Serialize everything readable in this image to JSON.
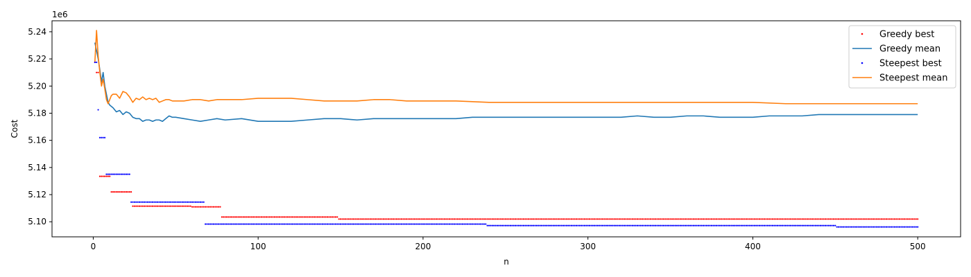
{
  "chart_data": {
    "type": "line",
    "title": "",
    "xlabel": "n",
    "ylabel": "Cost",
    "offset_text": "1e6",
    "scale_multiplier": 1000000,
    "xlim": [
      -25,
      526
    ],
    "ylim": [
      5.0889,
      5.2481
    ],
    "xticks": [
      0,
      100,
      200,
      300,
      400,
      500
    ],
    "xtick_labels": [
      "0",
      "100",
      "200",
      "300",
      "400",
      "500"
    ],
    "yticks": [
      5.1,
      5.12,
      5.14,
      5.16,
      5.18,
      5.2,
      5.22,
      5.24
    ],
    "ytick_labels": [
      "5.10",
      "5.12",
      "5.14",
      "5.16",
      "5.18",
      "5.20",
      "5.22",
      "5.24"
    ],
    "grid": false,
    "legend_position": "top-right",
    "series": [
      {
        "name": "Greedy best",
        "style": "points",
        "color": "#ff0000",
        "steps": [
          [
            1,
            5.2175
          ],
          [
            2,
            5.21
          ],
          [
            4,
            5.1335
          ],
          [
            10,
            5.1335
          ],
          [
            11,
            5.122
          ],
          [
            23,
            5.122
          ],
          [
            24,
            5.1115
          ],
          [
            59,
            5.1115
          ],
          [
            60,
            5.111
          ],
          [
            77,
            5.111
          ],
          [
            78,
            5.1035
          ],
          [
            148,
            5.1035
          ],
          [
            149,
            5.102
          ],
          [
            500,
            5.102
          ]
        ]
      },
      {
        "name": "Greedy mean",
        "style": "line",
        "color": "#1f77b4",
        "points": [
          [
            1,
            5.232
          ],
          [
            2,
            5.226
          ],
          [
            3,
            5.22
          ],
          [
            4,
            5.212
          ],
          [
            5,
            5.203
          ],
          [
            6,
            5.21
          ],
          [
            7,
            5.2
          ],
          [
            8,
            5.194
          ],
          [
            9,
            5.188
          ],
          [
            10,
            5.186
          ],
          [
            12,
            5.184
          ],
          [
            14,
            5.181
          ],
          [
            16,
            5.182
          ],
          [
            18,
            5.179
          ],
          [
            20,
            5.181
          ],
          [
            22,
            5.18
          ],
          [
            24,
            5.177
          ],
          [
            26,
            5.176
          ],
          [
            28,
            5.176
          ],
          [
            30,
            5.174
          ],
          [
            32,
            5.175
          ],
          [
            34,
            5.175
          ],
          [
            36,
            5.174
          ],
          [
            38,
            5.175
          ],
          [
            40,
            5.175
          ],
          [
            42,
            5.174
          ],
          [
            44,
            5.176
          ],
          [
            46,
            5.178
          ],
          [
            48,
            5.177
          ],
          [
            50,
            5.177
          ],
          [
            55,
            5.176
          ],
          [
            60,
            5.175
          ],
          [
            65,
            5.174
          ],
          [
            70,
            5.175
          ],
          [
            75,
            5.176
          ],
          [
            80,
            5.175
          ],
          [
            90,
            5.176
          ],
          [
            100,
            5.174
          ],
          [
            110,
            5.174
          ],
          [
            120,
            5.174
          ],
          [
            130,
            5.175
          ],
          [
            140,
            5.176
          ],
          [
            150,
            5.176
          ],
          [
            160,
            5.175
          ],
          [
            170,
            5.176
          ],
          [
            180,
            5.176
          ],
          [
            190,
            5.176
          ],
          [
            200,
            5.176
          ],
          [
            210,
            5.176
          ],
          [
            220,
            5.176
          ],
          [
            230,
            5.177
          ],
          [
            240,
            5.177
          ],
          [
            250,
            5.177
          ],
          [
            260,
            5.177
          ],
          [
            270,
            5.177
          ],
          [
            280,
            5.177
          ],
          [
            290,
            5.177
          ],
          [
            300,
            5.177
          ],
          [
            310,
            5.177
          ],
          [
            320,
            5.177
          ],
          [
            330,
            5.178
          ],
          [
            340,
            5.177
          ],
          [
            350,
            5.177
          ],
          [
            360,
            5.178
          ],
          [
            370,
            5.178
          ],
          [
            380,
            5.177
          ],
          [
            390,
            5.177
          ],
          [
            400,
            5.177
          ],
          [
            410,
            5.178
          ],
          [
            420,
            5.178
          ],
          [
            430,
            5.178
          ],
          [
            440,
            5.179
          ],
          [
            450,
            5.179
          ],
          [
            460,
            5.179
          ],
          [
            470,
            5.179
          ],
          [
            480,
            5.179
          ],
          [
            490,
            5.179
          ],
          [
            500,
            5.179
          ]
        ]
      },
      {
        "name": "Steepest best",
        "style": "points",
        "color": "#0000ff",
        "steps": [
          [
            1,
            5.2175
          ],
          [
            3,
            5.1825
          ],
          [
            4,
            5.162
          ],
          [
            7,
            5.162
          ],
          [
            8,
            5.135
          ],
          [
            22,
            5.135
          ],
          [
            23,
            5.1145
          ],
          [
            67,
            5.1145
          ],
          [
            68,
            5.0983
          ],
          [
            238,
            5.0983
          ],
          [
            239,
            5.0972
          ],
          [
            450,
            5.0972
          ],
          [
            451,
            5.0962
          ],
          [
            500,
            5.0962
          ]
        ]
      },
      {
        "name": "Steepest mean",
        "style": "line",
        "color": "#ff7f0e",
        "points": [
          [
            1,
            5.218
          ],
          [
            2,
            5.241
          ],
          [
            3,
            5.222
          ],
          [
            4,
            5.21
          ],
          [
            5,
            5.2
          ],
          [
            6,
            5.205
          ],
          [
            7,
            5.198
          ],
          [
            8,
            5.19
          ],
          [
            9,
            5.187
          ],
          [
            10,
            5.19
          ],
          [
            11,
            5.193
          ],
          [
            12,
            5.194
          ],
          [
            14,
            5.194
          ],
          [
            16,
            5.191
          ],
          [
            18,
            5.196
          ],
          [
            20,
            5.195
          ],
          [
            22,
            5.192
          ],
          [
            24,
            5.188
          ],
          [
            26,
            5.191
          ],
          [
            28,
            5.19
          ],
          [
            30,
            5.192
          ],
          [
            32,
            5.19
          ],
          [
            34,
            5.191
          ],
          [
            36,
            5.19
          ],
          [
            38,
            5.191
          ],
          [
            40,
            5.188
          ],
          [
            42,
            5.189
          ],
          [
            44,
            5.19
          ],
          [
            46,
            5.19
          ],
          [
            48,
            5.189
          ],
          [
            50,
            5.189
          ],
          [
            55,
            5.189
          ],
          [
            60,
            5.19
          ],
          [
            65,
            5.19
          ],
          [
            70,
            5.189
          ],
          [
            75,
            5.19
          ],
          [
            80,
            5.19
          ],
          [
            90,
            5.19
          ],
          [
            100,
            5.191
          ],
          [
            110,
            5.191
          ],
          [
            120,
            5.191
          ],
          [
            130,
            5.19
          ],
          [
            140,
            5.189
          ],
          [
            150,
            5.189
          ],
          [
            160,
            5.189
          ],
          [
            170,
            5.19
          ],
          [
            180,
            5.19
          ],
          [
            190,
            5.189
          ],
          [
            200,
            5.189
          ],
          [
            220,
            5.189
          ],
          [
            240,
            5.188
          ],
          [
            260,
            5.188
          ],
          [
            280,
            5.188
          ],
          [
            300,
            5.188
          ],
          [
            320,
            5.188
          ],
          [
            340,
            5.188
          ],
          [
            360,
            5.188
          ],
          [
            380,
            5.188
          ],
          [
            400,
            5.188
          ],
          [
            420,
            5.187
          ],
          [
            440,
            5.187
          ],
          [
            460,
            5.187
          ],
          [
            480,
            5.187
          ],
          [
            500,
            5.187
          ]
        ]
      }
    ]
  }
}
